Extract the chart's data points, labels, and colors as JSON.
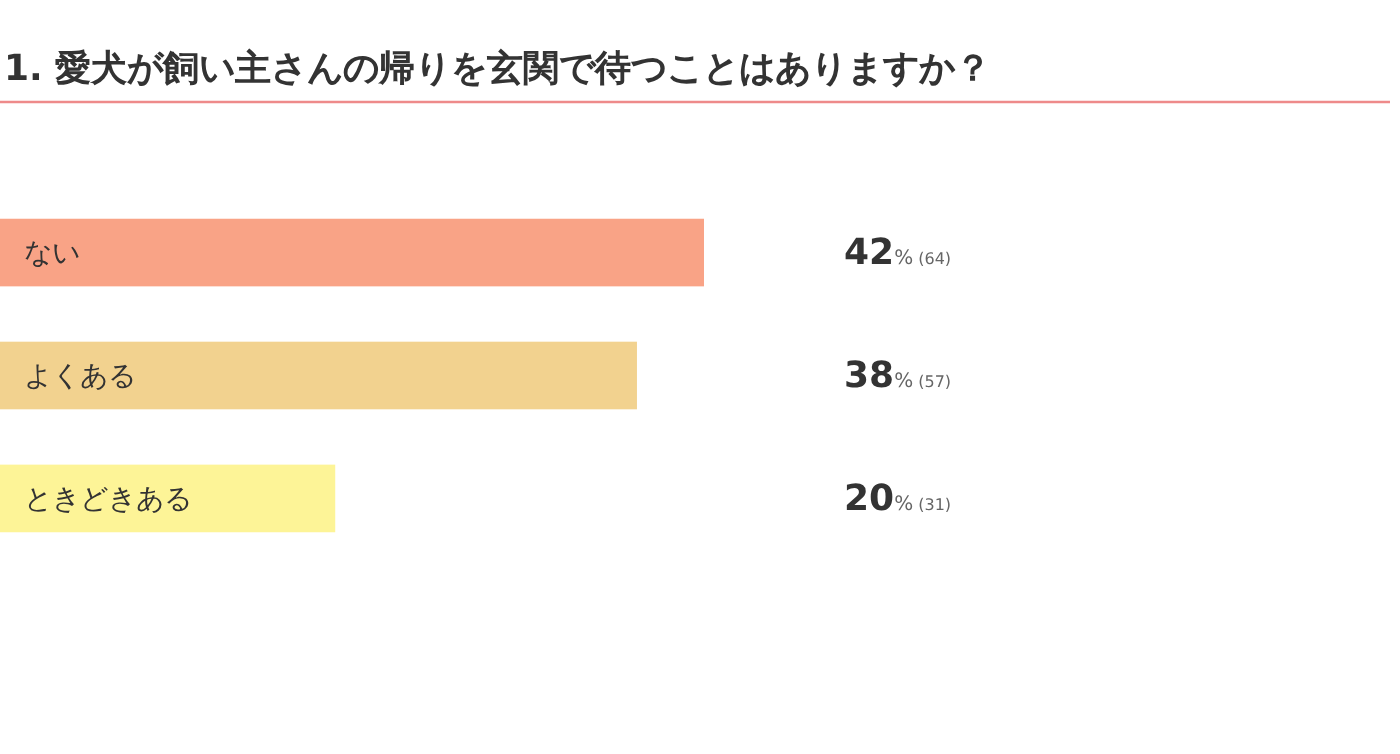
{
  "chart_data": {
    "type": "bar",
    "orientation": "horizontal",
    "title": "1. 愛犬が飼い主さんの帰りを玄関で待つことはありますか？",
    "categories": [
      "ない",
      "よくある",
      "ときどきある"
    ],
    "values": [
      42,
      38,
      20
    ],
    "colors": [
      "#f9a386",
      "#f2d28f",
      "#fdf497"
    ],
    "value_labels": [
      "42% (64)",
      "38% (57)",
      "20% (31)"
    ]
  }
}
